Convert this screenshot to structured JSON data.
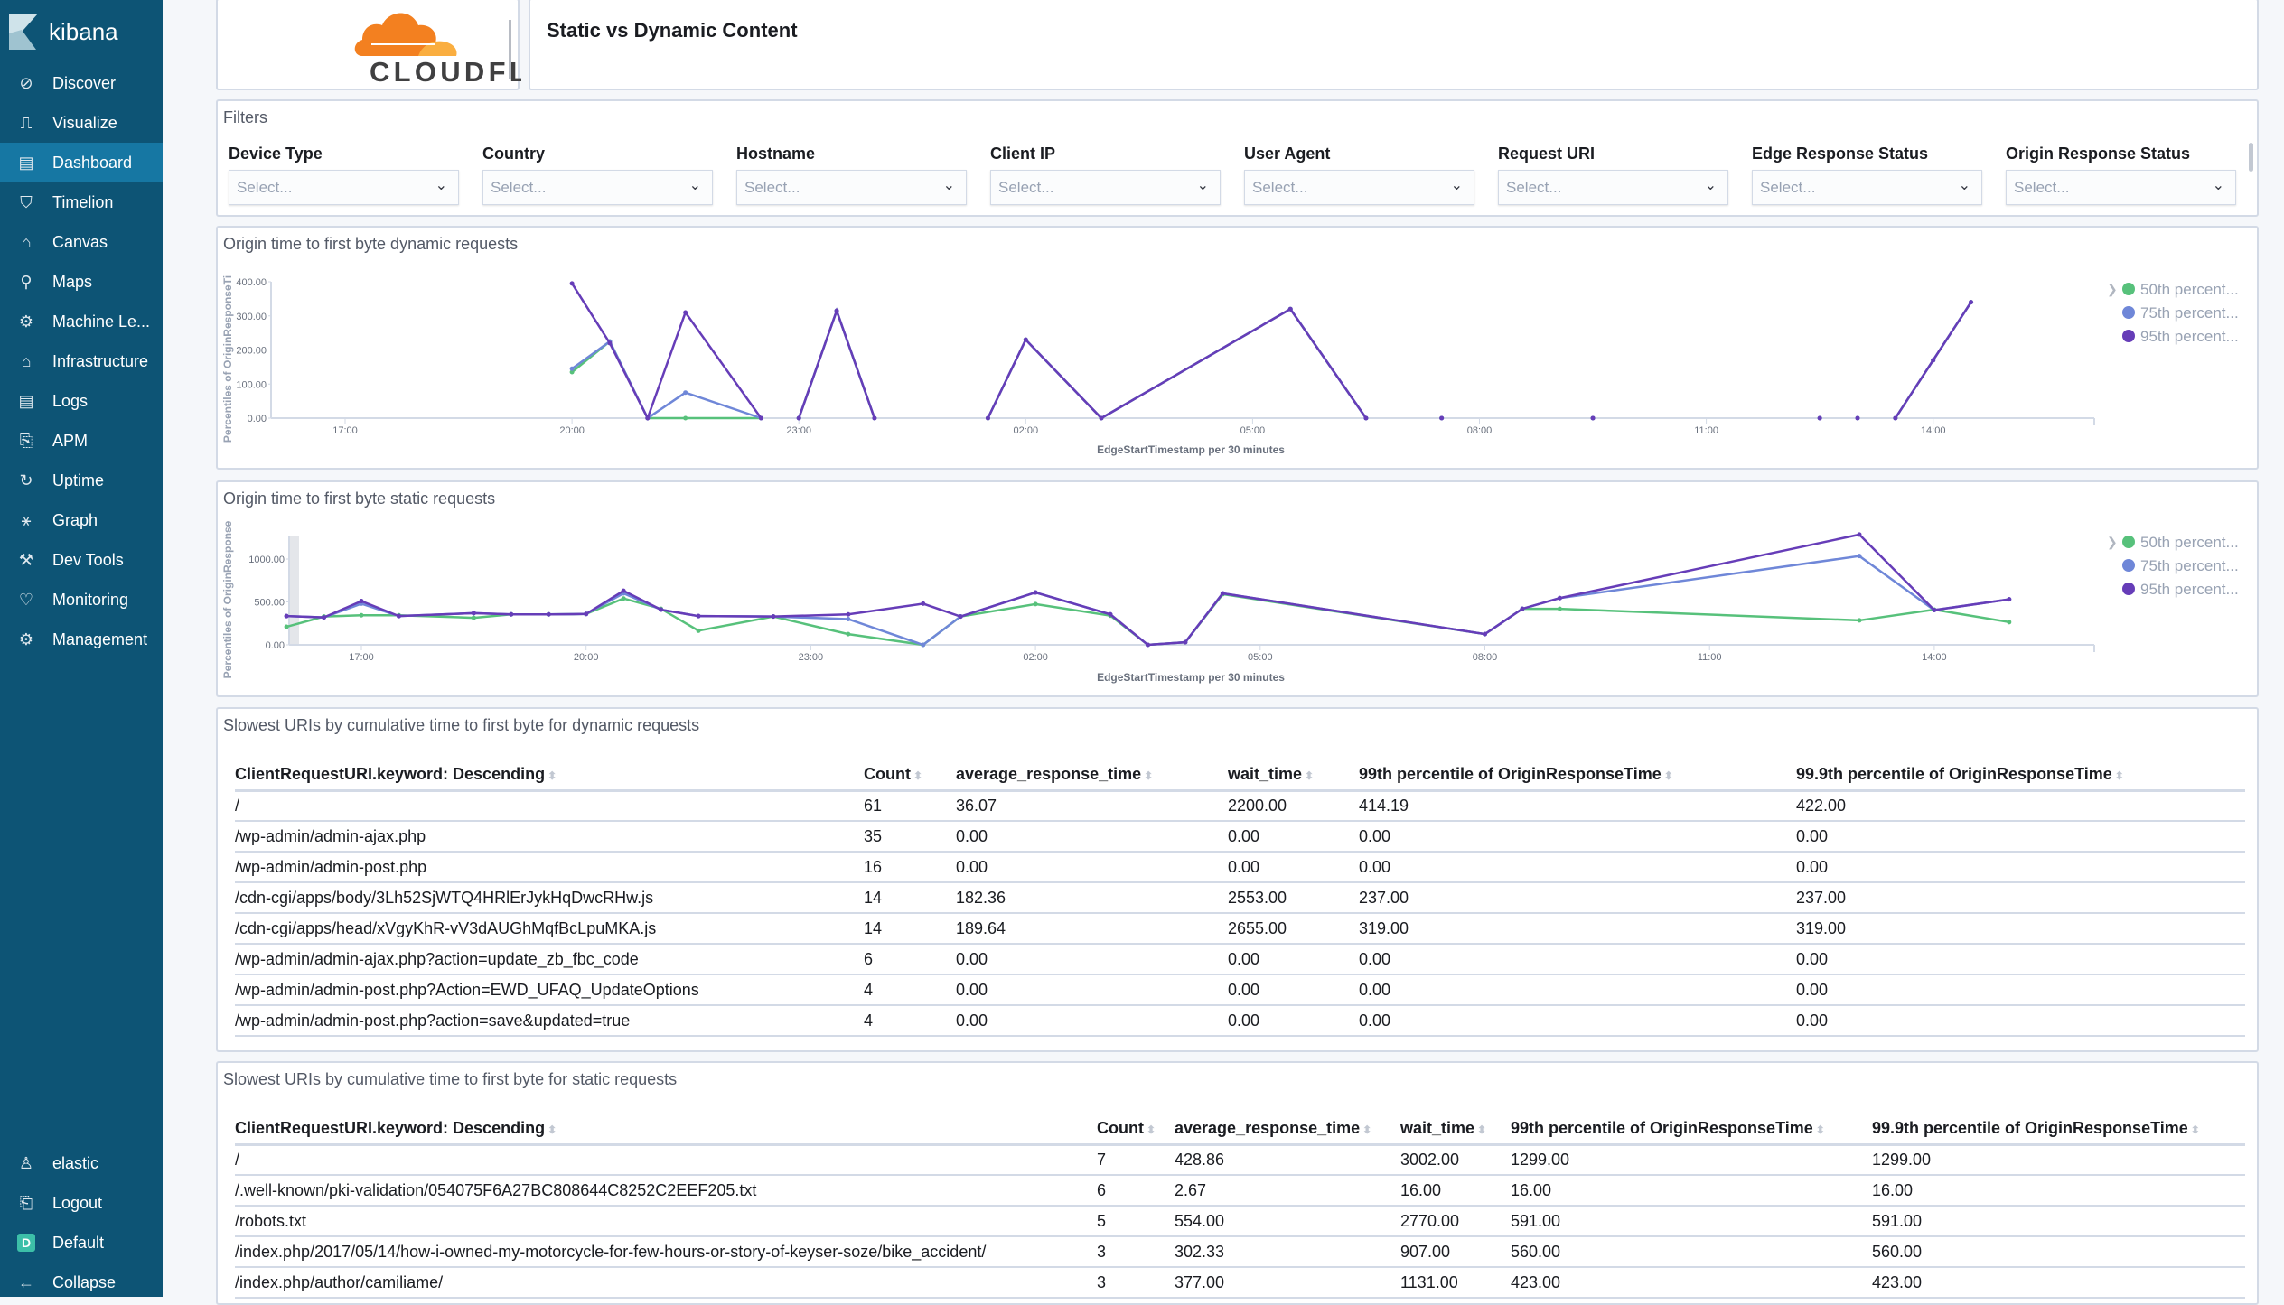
{
  "app": {
    "name": "kibana"
  },
  "sidebar": {
    "items": [
      {
        "label": "Discover",
        "icon": "compass-icon",
        "glyph": "⊘"
      },
      {
        "label": "Visualize",
        "icon": "visualize-icon",
        "glyph": "⎍"
      },
      {
        "label": "Dashboard",
        "icon": "dashboard-icon",
        "glyph": "▤",
        "active": true
      },
      {
        "label": "Timelion",
        "icon": "timelion-icon",
        "glyph": "⛉"
      },
      {
        "label": "Canvas",
        "icon": "canvas-icon",
        "glyph": "⌂"
      },
      {
        "label": "Maps",
        "icon": "maps-icon",
        "glyph": "⚲"
      },
      {
        "label": "Machine Le...",
        "icon": "machine-learning-icon",
        "glyph": "⚙"
      },
      {
        "label": "Infrastructure",
        "icon": "infrastructure-icon",
        "glyph": "⌂"
      },
      {
        "label": "Logs",
        "icon": "logs-icon",
        "glyph": "▤"
      },
      {
        "label": "APM",
        "icon": "apm-icon",
        "glyph": "⎘"
      },
      {
        "label": "Uptime",
        "icon": "uptime-icon",
        "glyph": "↻"
      },
      {
        "label": "Graph",
        "icon": "graph-icon",
        "glyph": "⚹"
      },
      {
        "label": "Dev Tools",
        "icon": "dev-tools-icon",
        "glyph": "⚒"
      },
      {
        "label": "Monitoring",
        "icon": "monitoring-icon",
        "glyph": "♡"
      },
      {
        "label": "Management",
        "icon": "gear-icon",
        "glyph": "⚙"
      }
    ],
    "bottom": [
      {
        "label": "elastic",
        "icon": "user-icon",
        "glyph": "♙"
      },
      {
        "label": "Logout",
        "icon": "logout-icon",
        "glyph": "⎗"
      },
      {
        "label": "Default",
        "icon": "space-icon",
        "glyph": "D"
      },
      {
        "label": "Collapse",
        "icon": "arrow-left-icon",
        "glyph": "←"
      }
    ]
  },
  "logo": {
    "text": "CLOUDFLARE"
  },
  "header": {
    "title": "Static vs Dynamic Content"
  },
  "filters": {
    "title": "Filters",
    "placeholder": "Select...",
    "controls": [
      "Device Type",
      "Country",
      "Hostname",
      "Client IP",
      "User Agent",
      "Request URI",
      "Edge Response Status",
      "Origin Response Status"
    ]
  },
  "colors": {
    "p50": "#54b399",
    "p50_line": "#57c17b",
    "p75": "#6f87d8",
    "p95": "#663db8",
    "sidebar": "#0d5475",
    "active": "#1677a3"
  },
  "chart_data": [
    {
      "type": "line",
      "title": "Origin time to first byte dynamic requests",
      "xlabel": "EdgeStartTimestamp per 30 minutes",
      "ylabel": "Percentiles of OriginResponseTi",
      "yticks": [
        "0.00",
        "100.00",
        "200.00",
        "300.00",
        "400.00"
      ],
      "ylim": [
        0,
        400
      ],
      "xticks": [
        "17:00",
        "20:00",
        "23:00",
        "02:00",
        "05:00",
        "08:00",
        "11:00",
        "14:00"
      ],
      "xlim": [
        "16:00",
        "16:10"
      ],
      "legend": "right",
      "grid": false,
      "series": [
        {
          "name": "50th percent...",
          "color": "#57c17b",
          "points": [
            [
              "20:00",
              135
            ],
            [
              "20:30",
              225
            ],
            [
              "21:00",
              0
            ],
            [
              "21:30",
              0
            ],
            [
              "22:30",
              0
            ],
            null,
            [
              "23:00",
              0
            ],
            [
              "23:30",
              315
            ],
            [
              "00:00",
              0
            ],
            null,
            [
              "01:30",
              0
            ],
            [
              "02:00",
              230
            ],
            [
              "03:00",
              0
            ],
            [
              "05:30",
              320
            ],
            [
              "06:30",
              0
            ],
            null,
            [
              "07:30",
              0
            ],
            null,
            [
              "09:30",
              0
            ],
            null,
            [
              "12:30",
              0
            ],
            null,
            [
              "13:00",
              0
            ],
            null,
            [
              "13:30",
              0
            ],
            [
              "14:00",
              170
            ],
            [
              "14:30",
              340
            ]
          ]
        },
        {
          "name": "75th percent...",
          "color": "#6f87d8",
          "points": [
            [
              "20:00",
              145
            ],
            [
              "20:30",
              225
            ],
            [
              "21:00",
              0
            ],
            [
              "21:30",
              75
            ],
            [
              "22:30",
              0
            ],
            null,
            [
              "23:00",
              0
            ],
            [
              "23:30",
              315
            ],
            [
              "00:00",
              0
            ],
            null,
            [
              "01:30",
              0
            ],
            [
              "02:00",
              230
            ],
            [
              "03:00",
              0
            ],
            [
              "05:30",
              320
            ],
            [
              "06:30",
              0
            ],
            null,
            [
              "07:30",
              0
            ],
            null,
            [
              "09:30",
              0
            ],
            null,
            [
              "12:30",
              0
            ],
            null,
            [
              "13:00",
              0
            ],
            null,
            [
              "13:30",
              0
            ],
            [
              "14:00",
              170
            ],
            [
              "14:30",
              340
            ]
          ]
        },
        {
          "name": "95th percent...",
          "color": "#663db8",
          "points": [
            [
              "20:00",
              395
            ],
            [
              "20:30",
              220
            ],
            [
              "21:00",
              0
            ],
            [
              "21:30",
              310
            ],
            [
              "22:30",
              0
            ],
            null,
            [
              "23:00",
              0
            ],
            [
              "23:30",
              315
            ],
            [
              "00:00",
              0
            ],
            null,
            [
              "01:30",
              0
            ],
            [
              "02:00",
              230
            ],
            [
              "03:00",
              0
            ],
            [
              "05:30",
              320
            ],
            [
              "06:30",
              0
            ],
            null,
            [
              "07:30",
              0
            ],
            null,
            [
              "09:30",
              0
            ],
            null,
            [
              "12:30",
              0
            ],
            null,
            [
              "13:00",
              0
            ],
            null,
            [
              "13:30",
              0
            ],
            [
              "14:00",
              170
            ],
            [
              "14:30",
              340
            ]
          ]
        }
      ]
    },
    {
      "type": "line",
      "title": "Origin time to first byte static requests",
      "xlabel": "EdgeStartTimestamp per 30 minutes",
      "ylabel": "Percentiles of OriginResponse",
      "yticks": [
        "0.00",
        "500.00",
        "1000.00"
      ],
      "ylim": [
        0,
        1250
      ],
      "xticks": [
        "17:00",
        "20:00",
        "23:00",
        "02:00",
        "05:00",
        "08:00",
        "11:00",
        "14:00"
      ],
      "xlim": [
        "16:00",
        "16:10"
      ],
      "legend": "right",
      "grid": false,
      "series": [
        {
          "name": "50th percent...",
          "color": "#57c17b",
          "points": [
            [
              "16:00",
              210
            ],
            [
              "16:30",
              330
            ],
            [
              "17:00",
              345
            ],
            [
              "17:30",
              345
            ],
            [
              "18:30",
              315
            ],
            [
              "19:00",
              355
            ],
            [
              "19:30",
              355
            ],
            [
              "20:00",
              360
            ],
            [
              "20:30",
              540
            ],
            [
              "21:00",
              420
            ],
            [
              "21:30",
              165
            ],
            [
              "22:30",
              330
            ],
            [
              "23:30",
              125
            ],
            [
              "00:30",
              0
            ],
            [
              "01:00",
              330
            ],
            [
              "02:00",
              475
            ],
            [
              "03:00",
              340
            ],
            [
              "03:30",
              0
            ],
            [
              "04:00",
              30
            ],
            [
              "04:30",
              590
            ],
            [
              "08:00",
              125
            ],
            [
              "08:30",
              420
            ],
            [
              "09:00",
              420
            ],
            [
              "13:00",
              285
            ],
            [
              "14:00",
              410
            ],
            [
              "15:00",
              265
            ]
          ]
        },
        {
          "name": "75th percent...",
          "color": "#6f87d8",
          "points": [
            [
              "16:00",
              335
            ],
            [
              "16:30",
              320
            ],
            [
              "17:00",
              480
            ],
            [
              "17:30",
              335
            ],
            [
              "18:30",
              370
            ],
            [
              "19:00",
              355
            ],
            [
              "19:30",
              355
            ],
            [
              "20:00",
              360
            ],
            [
              "20:30",
              600
            ],
            [
              "21:00",
              410
            ],
            [
              "21:30",
              335
            ],
            [
              "22:30",
              330
            ],
            [
              "23:30",
              300
            ],
            [
              "00:30",
              0
            ],
            [
              "01:00",
              330
            ],
            [
              "02:00",
              610
            ],
            [
              "03:00",
              355
            ],
            [
              "03:30",
              0
            ],
            [
              "04:00",
              30
            ],
            [
              "04:30",
              600
            ],
            [
              "08:00",
              125
            ],
            [
              "08:30",
              420
            ],
            [
              "09:00",
              545
            ],
            [
              "13:00",
              1035
            ],
            [
              "14:00",
              405
            ],
            [
              "15:00",
              530
            ]
          ]
        },
        {
          "name": "95th percent...",
          "color": "#663db8",
          "points": [
            [
              "16:00",
              335
            ],
            [
              "16:30",
              320
            ],
            [
              "17:00",
              510
            ],
            [
              "17:30",
              335
            ],
            [
              "18:30",
              370
            ],
            [
              "19:00",
              355
            ],
            [
              "19:30",
              355
            ],
            [
              "20:00",
              360
            ],
            [
              "20:30",
              630
            ],
            [
              "21:00",
              410
            ],
            [
              "21:30",
              335
            ],
            [
              "22:30",
              330
            ],
            [
              "23:30",
              355
            ],
            [
              "00:30",
              480
            ],
            [
              "01:00",
              330
            ],
            [
              "02:00",
              610
            ],
            [
              "03:00",
              355
            ],
            [
              "03:30",
              0
            ],
            [
              "04:00",
              30
            ],
            [
              "04:30",
              600
            ],
            [
              "08:00",
              125
            ],
            [
              "08:30",
              420
            ],
            [
              "09:00",
              545
            ],
            [
              "13:00",
              1285
            ],
            [
              "14:00",
              405
            ],
            [
              "15:00",
              530
            ]
          ]
        }
      ]
    }
  ],
  "table_dynamic": {
    "title": "Slowest URIs by cumulative time to first byte for dynamic requests",
    "columns": [
      "ClientRequestURI.keyword: Descending",
      "Count",
      "average_response_time",
      "wait_time",
      "99th percentile of OriginResponseTime",
      "99.9th percentile of OriginResponseTime"
    ],
    "rows": [
      [
        "/",
        "61",
        "36.07",
        "2200.00",
        "414.19",
        "422.00"
      ],
      [
        "/wp-admin/admin-ajax.php",
        "35",
        "0.00",
        "0.00",
        "0.00",
        "0.00"
      ],
      [
        "/wp-admin/admin-post.php",
        "16",
        "0.00",
        "0.00",
        "0.00",
        "0.00"
      ],
      [
        "/cdn-cgi/apps/body/3Lh52SjWTQ4HRlErJykHqDwcRHw.js",
        "14",
        "182.36",
        "2553.00",
        "237.00",
        "237.00"
      ],
      [
        "/cdn-cgi/apps/head/xVgyKhR-vV3dAUGhMqfBcLpuMKA.js",
        "14",
        "189.64",
        "2655.00",
        "319.00",
        "319.00"
      ],
      [
        "/wp-admin/admin-ajax.php?action=update_zb_fbc_code",
        "6",
        "0.00",
        "0.00",
        "0.00",
        "0.00"
      ],
      [
        "/wp-admin/admin-post.php?Action=EWD_UFAQ_UpdateOptions",
        "4",
        "0.00",
        "0.00",
        "0.00",
        "0.00"
      ],
      [
        "/wp-admin/admin-post.php?action=save&updated=true",
        "4",
        "0.00",
        "0.00",
        "0.00",
        "0.00"
      ]
    ]
  },
  "table_static": {
    "title": "Slowest URIs by cumulative time to first byte for static requests",
    "columns": [
      "ClientRequestURI.keyword: Descending",
      "Count",
      "average_response_time",
      "wait_time",
      "99th percentile of OriginResponseTime",
      "99.9th percentile of OriginResponseTime"
    ],
    "rows": [
      [
        "/",
        "7",
        "428.86",
        "3002.00",
        "1299.00",
        "1299.00"
      ],
      [
        "/.well-known/pki-validation/054075F6A27BC808644C8252C2EEF205.txt",
        "6",
        "2.67",
        "16.00",
        "16.00",
        "16.00"
      ],
      [
        "/robots.txt",
        "5",
        "554.00",
        "2770.00",
        "591.00",
        "591.00"
      ],
      [
        "/index.php/2017/05/14/how-i-owned-my-motorcycle-for-few-hours-or-story-of-keyser-soze/bike_accident/",
        "3",
        "302.33",
        "907.00",
        "560.00",
        "560.00"
      ],
      [
        "/index.php/author/camiliame/",
        "3",
        "377.00",
        "1131.00",
        "423.00",
        "423.00"
      ]
    ]
  }
}
